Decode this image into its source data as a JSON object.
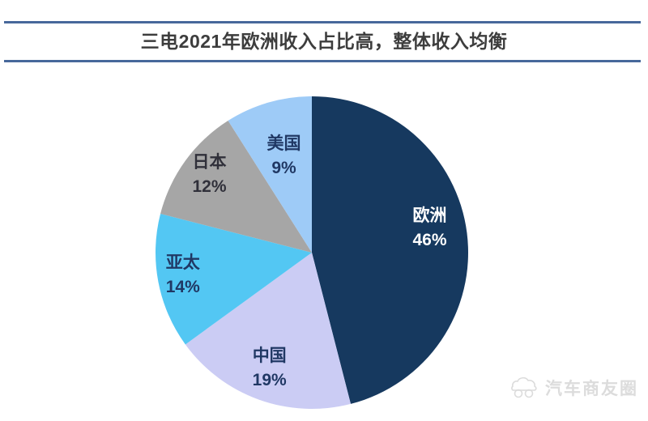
{
  "chart_data": {
    "type": "pie",
    "title": "三电2021年欧洲收入占比高，整体收入均衡",
    "labels": [
      "欧洲",
      "中国",
      "亚太",
      "日本",
      "美国"
    ],
    "values": [
      46,
      19,
      14,
      12,
      9
    ],
    "unit": "%",
    "colors": [
      "#16395F",
      "#CBCCF4",
      "#53C7F3",
      "#A6A6A6",
      "#9ECBF7"
    ],
    "label_text_colors": [
      "#FFFFFF",
      "#203864",
      "#203864",
      "#30303A",
      "#203864"
    ],
    "start_angle_deg": 0,
    "direction": "clockwise",
    "label_position": "inside",
    "legend": "none",
    "background": "#FFFFFF"
  },
  "header": {
    "rule_color": "#47689B",
    "title_color": "#3D3D3D"
  },
  "watermark": {
    "text": "汽车商友圈",
    "icon": "car-logo-icon",
    "color": "#DCDCDC"
  }
}
